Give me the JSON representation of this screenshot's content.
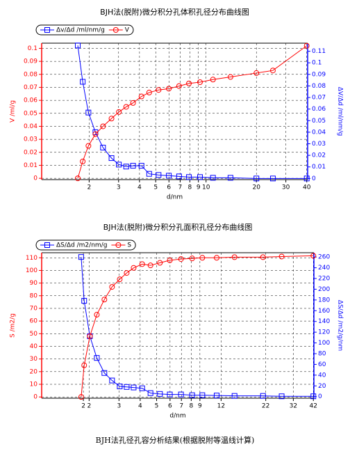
{
  "chart_data": [
    {
      "type": "line",
      "title": "BJH法(脱附)微分积分孔体积孔径分布曲线图",
      "xlabel": "d/nm",
      "ylabel": "V /ml/g",
      "y2label": "ΔV/Δd /ml/nm/g",
      "log_x": true,
      "grid": true,
      "x": [
        1.71,
        1.83,
        1.98,
        2.18,
        2.42,
        2.72,
        3.01,
        3.33,
        3.66,
        4.11,
        4.57,
        5.2,
        5.99,
        6.9,
        7.9,
        9.2,
        11.0,
        14.0,
        20,
        25.1,
        40
      ],
      "xlim": [
        1.04,
        40.5
      ],
      "xticks": [
        2,
        3,
        4,
        5,
        6,
        7,
        8,
        9,
        10,
        20,
        30,
        40
      ],
      "ylim": [
        -0.001,
        0.104
      ],
      "yticks": [
        0,
        0.01,
        0.02,
        0.03,
        0.04,
        0.05,
        0.06,
        0.07,
        0.08,
        0.09,
        0.1
      ],
      "y2lim": [
        -0.001,
        0.117
      ],
      "y2ticks": [
        0,
        0.01,
        0.02,
        0.03,
        0.04,
        0.05,
        0.06,
        0.07,
        0.08,
        0.09,
        0.1,
        0.11
      ],
      "series": [
        {
          "name": "Δv/Δd /ml/nm/g",
          "color": "#0000ff",
          "axis": "y2",
          "marker": "square",
          "values": [
            0.115,
            0.0836,
            0.057,
            0.04,
            0.0267,
            0.0176,
            0.012,
            0.0103,
            0.011,
            0.011,
            0.004,
            0.003,
            0.0024,
            0.0018,
            0.0012,
            0.0012,
            0.0006,
            0.0006,
            0.0,
            0.0,
            0.0
          ]
        },
        {
          "name": "V",
          "color": "#ff0000",
          "marker": "circle",
          "values": [
            0,
            0.013,
            0.025,
            0.034,
            0.04,
            0.046,
            0.051,
            0.055,
            0.058,
            0.063,
            0.066,
            0.068,
            0.069,
            0.071,
            0.073,
            0.074,
            0.076,
            0.078,
            0.081,
            0.083,
            0.102
          ]
        }
      ]
    },
    {
      "type": "line",
      "title": "BJH法(脱附)微分积分孔面积孔径分布曲线图",
      "xlabel": "d/nm",
      "ylabel": "S /m2/g",
      "y2label": "ΔS/Δd /m2/g/nm",
      "log_x": true,
      "grid": true,
      "x": [
        1.795,
        1.87,
        2.02,
        2.22,
        2.46,
        2.73,
        3.03,
        3.33,
        3.66,
        4.11,
        4.6,
        5.23,
        5.98,
        6.96,
        8.1,
        9.3,
        11.3,
        14.4,
        21.2,
        27.3,
        42
      ],
      "xlim": [
        1.05,
        42.3
      ],
      "xticks": [
        {
          "value": 1.85,
          "label": "2"
        },
        2,
        3,
        4,
        5,
        6,
        7,
        8,
        9,
        12,
        22,
        32,
        42
      ],
      "ylim": [
        -1,
        114
      ],
      "yticks": [
        0,
        10,
        20,
        30,
        40,
        50,
        60,
        70,
        80,
        90,
        100,
        110
      ],
      "y2lim": [
        -3,
        268
      ],
      "y2ticks": [
        0,
        20,
        40,
        60,
        80,
        100,
        120,
        140,
        160,
        180,
        200,
        220,
        240,
        260
      ],
      "series": [
        {
          "name": "ΔS/Δd /m2/nm/g",
          "color": "#0000ff",
          "axis": "y2",
          "marker": "square",
          "values": [
            260,
            178.5,
            112.5,
            72,
            44,
            30,
            19,
            18,
            17,
            15.5,
            6.5,
            5,
            4,
            4,
            2.6,
            2.6,
            2,
            1.3,
            1.3,
            0.6,
            0.6
          ]
        },
        {
          "name": "S",
          "color": "#ff0000",
          "marker": "circle",
          "values": [
            0,
            25,
            48,
            65,
            77,
            87,
            93,
            98,
            102,
            105,
            104,
            106,
            108,
            109,
            109.5,
            110,
            110,
            110.5,
            110.5,
            111,
            111.6
          ]
        }
      ]
    }
  ],
  "caption": "BJH法孔径孔容分析结果(根据脱附等温线计算)"
}
